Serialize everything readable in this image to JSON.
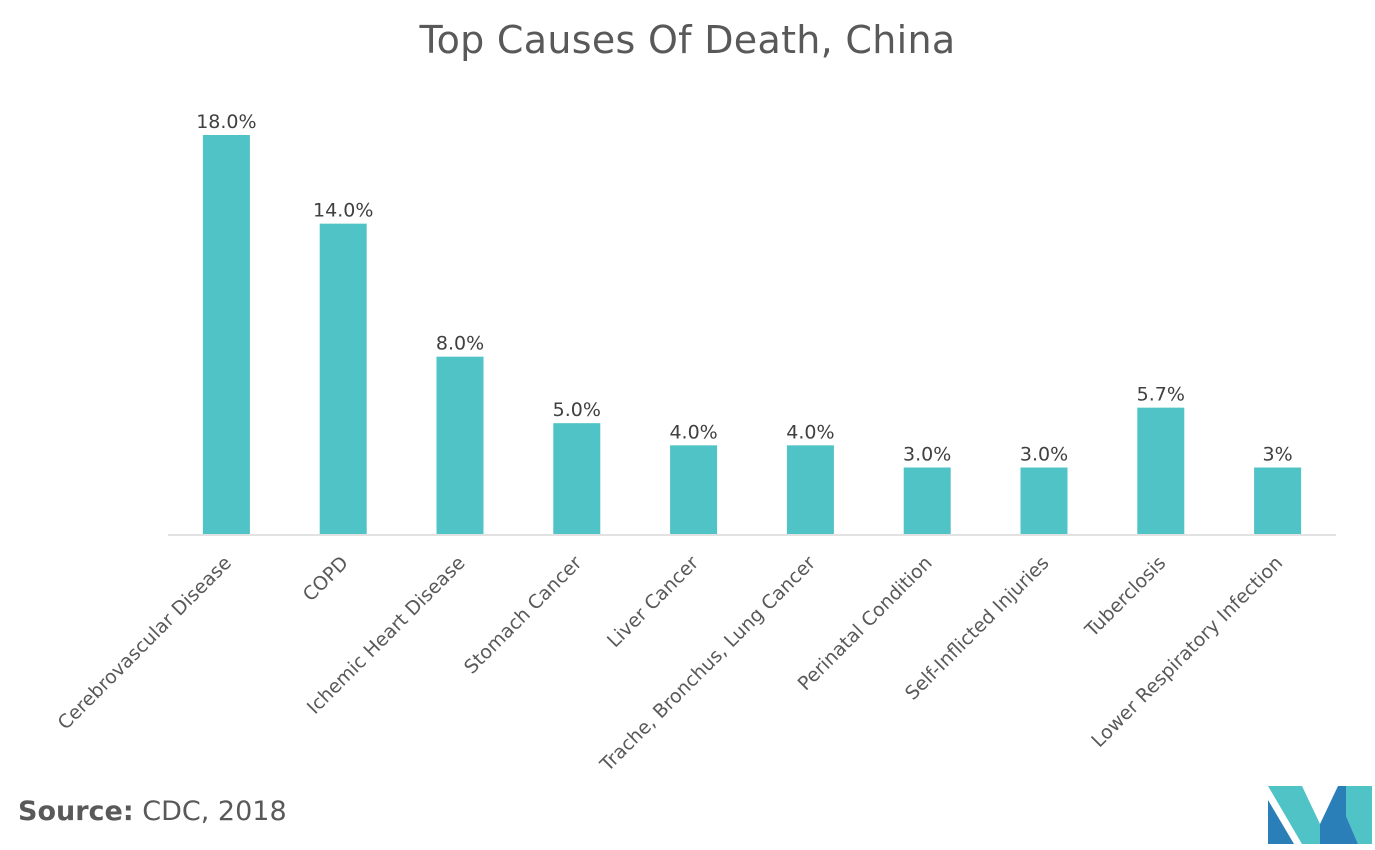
{
  "chart_data": {
    "type": "bar",
    "title": "Top Causes Of Death, China",
    "xlabel": "",
    "ylabel": "",
    "ylim": [
      0,
      18
    ],
    "grid": false,
    "categories": [
      "Cerebrovascular Disease",
      "COPD",
      "Ichemic Heart Disease",
      "Stomach Cancer",
      "Liver Cancer",
      "Trache, Bronchus, Lung Cancer",
      "Perinatal Condition",
      "Self-Inflicted Injuries",
      "Tuberclosis",
      "Lower Respiratory Infection"
    ],
    "values": [
      18.0,
      14.0,
      8.0,
      5.0,
      4.0,
      4.0,
      3.0,
      3.0,
      5.7,
      3.0
    ],
    "data_labels": [
      "18.0%",
      "14.0%",
      "8.0%",
      "5.0%",
      "4.0%",
      "4.0%",
      "3.0%",
      "3.0%",
      "5.7%",
      "3%"
    ],
    "bar_color": "#4fc3c6"
  },
  "source": {
    "label": "Source:",
    "text": "CDC, 2018"
  },
  "logo": {
    "icon": "mordor-intelligence-logo",
    "colors": [
      "#2b7fb8",
      "#4fc3c6"
    ]
  }
}
